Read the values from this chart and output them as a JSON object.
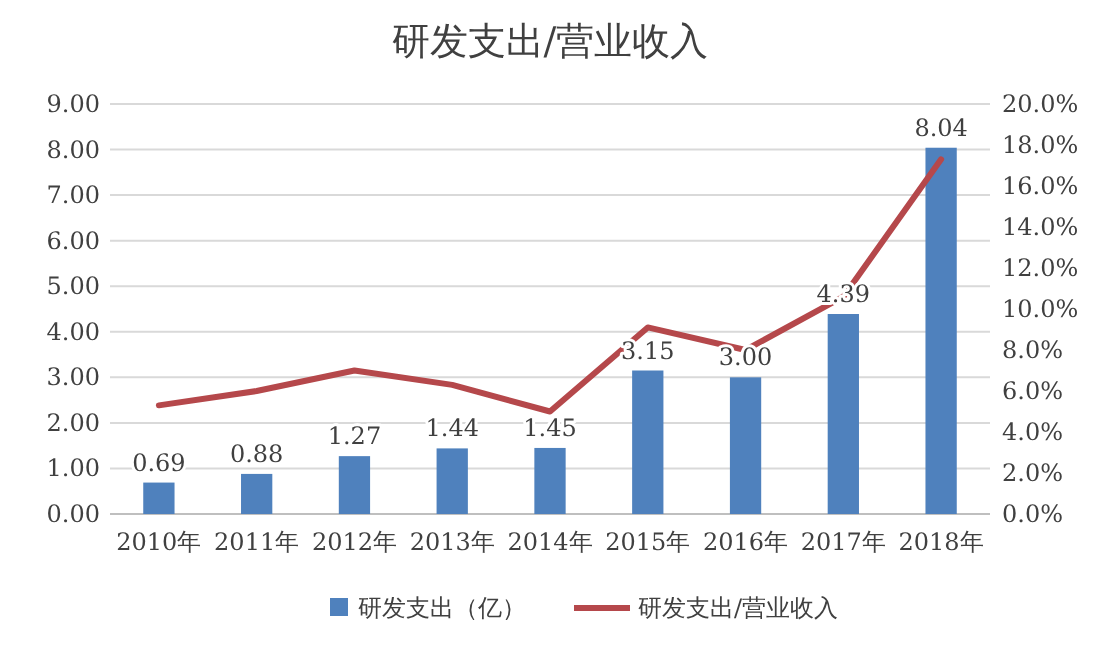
{
  "chart_data": {
    "type": "bar",
    "title": "研发支出/营业收入",
    "categories": [
      "2010年",
      "2011年",
      "2012年",
      "2013年",
      "2014年",
      "2015年",
      "2016年",
      "2017年",
      "2018年"
    ],
    "series": [
      {
        "name": "研发支出（亿）",
        "color": "#4f81bd",
        "values": [
          0.69,
          0.88,
          1.27,
          1.44,
          1.45,
          3.15,
          3.0,
          4.39,
          8.04
        ],
        "value_labels": [
          "0.69",
          "0.88",
          "1.27",
          "1.44",
          "1.45",
          "3.15",
          "3.00",
          "4.39",
          "8.04"
        ]
      },
      {
        "name": "研发支出/营业收入",
        "type": "line",
        "axis": "y2",
        "color": "#b5484b",
        "values": [
          5.3,
          6.0,
          7.0,
          6.3,
          5.0,
          9.1,
          8.0,
          10.6,
          17.3
        ]
      }
    ],
    "ylim": [
      0,
      9
    ],
    "yticks": [
      {
        "value": 0,
        "label": "0.00"
      },
      {
        "value": 1,
        "label": "1.00"
      },
      {
        "value": 2,
        "label": "2.00"
      },
      {
        "value": 3,
        "label": "3.00"
      },
      {
        "value": 4,
        "label": "4.00"
      },
      {
        "value": 5,
        "label": "5.00"
      },
      {
        "value": 6,
        "label": "6.00"
      },
      {
        "value": 7,
        "label": "7.00"
      },
      {
        "value": 8,
        "label": "8.00"
      },
      {
        "value": 9,
        "label": "9.00"
      }
    ],
    "y2lim": [
      0,
      20
    ],
    "y2ticks": [
      {
        "value": 0,
        "label": "0.0%"
      },
      {
        "value": 2,
        "label": "2.0%"
      },
      {
        "value": 4,
        "label": "4.0%"
      },
      {
        "value": 6,
        "label": "6.0%"
      },
      {
        "value": 8,
        "label": "8.0%"
      },
      {
        "value": 10,
        "label": "10.0%"
      },
      {
        "value": 12,
        "label": "12.0%"
      },
      {
        "value": 14,
        "label": "14.0%"
      },
      {
        "value": 16,
        "label": "16.0%"
      },
      {
        "value": 18,
        "label": "18.0%"
      },
      {
        "value": 20,
        "label": "20.0%"
      }
    ],
    "grid": "y",
    "legend": "bottom"
  }
}
